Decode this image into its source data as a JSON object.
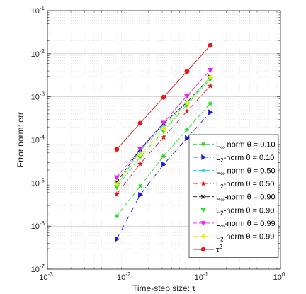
{
  "chart_data": {
    "type": "line",
    "scale": "log-log",
    "xlabel": "Time-step size: τ",
    "ylabel": "Error norm: err",
    "xlim": [
      0.001,
      1
    ],
    "ylim": [
      1e-07,
      0.1
    ],
    "x_ticks": [
      {
        "value": 0.001,
        "base": "10",
        "exp": "-3"
      },
      {
        "value": 0.01,
        "base": "10",
        "exp": "-2"
      },
      {
        "value": 0.1,
        "base": "10",
        "exp": "-1"
      },
      {
        "value": 1,
        "base": "10",
        "exp": "0"
      }
    ],
    "y_ticks": [
      {
        "value": 1e-07,
        "base": "10",
        "exp": "-7"
      },
      {
        "value": 1e-06,
        "base": "10",
        "exp": "-6"
      },
      {
        "value": 1e-05,
        "base": "10",
        "exp": "-5"
      },
      {
        "value": 0.0001,
        "base": "10",
        "exp": "-4"
      },
      {
        "value": 0.001,
        "base": "10",
        "exp": "-3"
      },
      {
        "value": 0.01,
        "base": "10",
        "exp": "-2"
      },
      {
        "value": 0.1,
        "base": "10",
        "exp": "-1"
      }
    ],
    "grid": true,
    "legend_position": "lower-right",
    "x": [
      0.0078125,
      0.015625,
      0.03125,
      0.0625,
      0.125
    ],
    "series": [
      {
        "label": {
          "pre": "L",
          "sub": "∞",
          "post": "-norm θ = 0.10"
        },
        "color": "#22d822",
        "dash": "6,3",
        "marker": "asterisk",
        "values": [
          1.7e-06,
          8.5e-06,
          4.2e-05,
          0.000175,
          0.0007
        ]
      },
      {
        "label": {
          "pre": "L",
          "sub": "2",
          "post": "-norm θ = 0.10"
        },
        "color": "#1a1ae6",
        "dash": "7,3,1.5,3",
        "marker": "triangle-right",
        "values": [
          5e-07,
          5.3e-06,
          2.7e-05,
          0.00011,
          0.00044
        ]
      },
      {
        "label": {
          "pre": "L",
          "sub": "∞",
          "post": "-norm θ = 0.50"
        },
        "color": "#22d8e6",
        "dash": "6,3",
        "marker": "asterisk",
        "values": [
          9e-06,
          5.5e-05,
          0.00022,
          0.0007,
          0.0028
        ]
      },
      {
        "label": {
          "pre": "L",
          "sub": "2",
          "post": "-norm θ = 0.50"
        },
        "color": "#e61a1a",
        "dash": "7,3,1.5,3",
        "marker": "star",
        "values": [
          5.5e-06,
          2.8e-05,
          0.000115,
          0.00046,
          0.0018
        ]
      },
      {
        "label": {
          "pre": "L",
          "sub": "∞",
          "post": "-norm θ = 0.90"
        },
        "color": "#111111",
        "dash": "6,3",
        "marker": "cross",
        "values": [
          1.05e-05,
          6e-05,
          0.00024,
          0.00075,
          0.0029
        ]
      },
      {
        "label": {
          "pre": "L",
          "sub": "2",
          "post": "-norm θ = 0.90"
        },
        "color": "#33dd33",
        "dash": "7,3,1.5,3",
        "marker": "triangle-down",
        "values": [
          8e-06,
          4e-05,
          0.00016,
          0.00065,
          0.0026
        ]
      },
      {
        "label": {
          "pre": "L",
          "sub": "∞",
          "post": "-norm θ = 0.99"
        },
        "color": "#ee1aee",
        "dash": "6,3",
        "marker": "triangle-down",
        "values": [
          1.35e-05,
          6.2e-05,
          0.00025,
          0.00105,
          0.0042
        ]
      },
      {
        "label": {
          "pre": "L",
          "sub": "2",
          "post": "-norm θ = 0.99"
        },
        "color": "#eeee1a",
        "dash": "7,3,1.5,3",
        "marker": "triangle-left",
        "values": [
          9.5e-06,
          4.5e-05,
          0.00018,
          0.00072,
          0.0029
        ]
      },
      {
        "label": {
          "pre": "τ",
          "sup": "2",
          "post": ""
        },
        "color": "#e61a1a",
        "dash": "",
        "marker": "circle",
        "values": [
          6.1e-05,
          0.000244,
          0.00098,
          0.0039,
          0.0156
        ]
      }
    ]
  }
}
